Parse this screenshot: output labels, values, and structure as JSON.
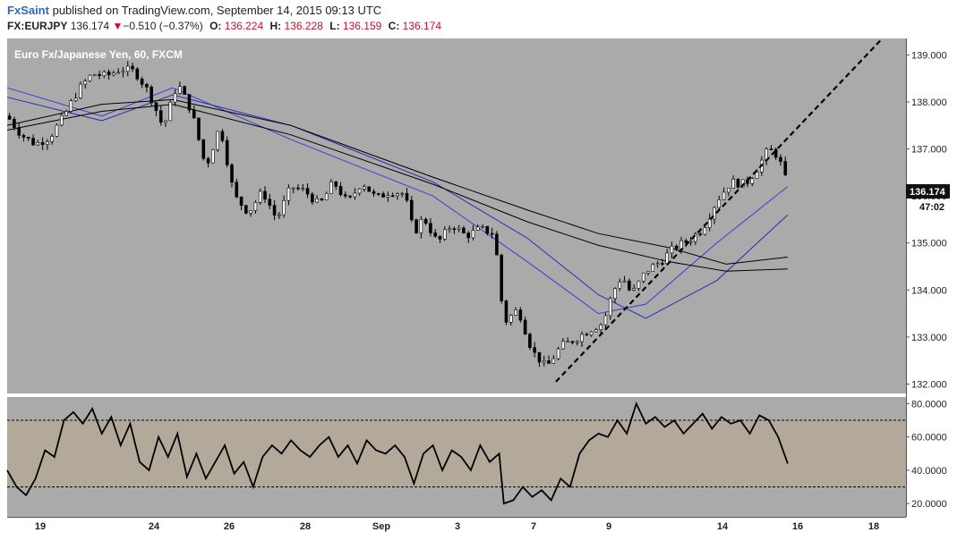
{
  "header": {
    "author": "FxSaint",
    "published_text": "published on TradingView.com, September 14, 2015 09:13 UTC",
    "symbol": "FX:EURJPY",
    "last": "136.174",
    "change_arrow": "▼",
    "change": "−0.510 (−0.37%)",
    "open_label": "O:",
    "open": "136.224",
    "high_label": "H:",
    "high": "136.228",
    "low_label": "L:",
    "low": "136.159",
    "close_label": "C:",
    "close": "136.174"
  },
  "chart_data": {
    "type": "candlestick",
    "title": "Euro Fx/Japanese Yen, 60, FXCM",
    "timeframe": "60",
    "ylim": [
      131.8,
      139.35
    ],
    "y_ticks": [
      "139.000",
      "138.000",
      "137.000",
      "136.000",
      "135.000",
      "134.000",
      "133.000",
      "132.000"
    ],
    "last_price_label": "136.174",
    "countdown_label": "47:02",
    "x_ticks": [
      "19",
      "24",
      "26",
      "28",
      "Sep",
      "3",
      "7",
      "9",
      "14",
      "16",
      "18"
    ],
    "price_path": [
      [
        0,
        137.7
      ],
      [
        3,
        137.3
      ],
      [
        6,
        137.1
      ],
      [
        9,
        137.25
      ],
      [
        12,
        137.7
      ],
      [
        15,
        138.25
      ],
      [
        18,
        138.6
      ],
      [
        21,
        138.55
      ],
      [
        24,
        138.7
      ],
      [
        27,
        138.65
      ],
      [
        30,
        138.2
      ],
      [
        33,
        137.45
      ],
      [
        36,
        138.4
      ],
      [
        39,
        137.8
      ],
      [
        42,
        136.6
      ],
      [
        45,
        137.5
      ],
      [
        48,
        136.0
      ],
      [
        51,
        135.65
      ],
      [
        54,
        136.1
      ],
      [
        57,
        135.5
      ],
      [
        60,
        136.2
      ],
      [
        63,
        136.1
      ],
      [
        66,
        135.8
      ],
      [
        69,
        136.3
      ],
      [
        72,
        135.85
      ],
      [
        75,
        136.3
      ],
      [
        78,
        135.95
      ],
      [
        81,
        136.1
      ],
      [
        84,
        136.05
      ],
      [
        86,
        135.2
      ],
      [
        88,
        135.55
      ],
      [
        91,
        135.0
      ],
      [
        94,
        135.4
      ],
      [
        97,
        135.15
      ],
      [
        100,
        135.3
      ],
      [
        103,
        135.2
      ],
      [
        105,
        133.3
      ],
      [
        108,
        133.6
      ],
      [
        111,
        132.7
      ],
      [
        114,
        132.35
      ],
      [
        117,
        132.8
      ],
      [
        120,
        132.95
      ],
      [
        123,
        133.15
      ],
      [
        126,
        133.3
      ],
      [
        128,
        133.95
      ],
      [
        130,
        134.3
      ],
      [
        132,
        133.9
      ],
      [
        135,
        134.4
      ],
      [
        138,
        134.6
      ],
      [
        141,
        134.9
      ],
      [
        144,
        135.05
      ],
      [
        147,
        135.3
      ],
      [
        150,
        135.9
      ],
      [
        153,
        136.3
      ],
      [
        156,
        136.25
      ],
      [
        158,
        136.5
      ],
      [
        161,
        137.0
      ],
      [
        163,
        136.85
      ],
      [
        165,
        136.2
      ]
    ],
    "series": [
      {
        "name": "",
        "color": "#3b3bd6",
        "values": [
          [
            0,
            138.3
          ],
          [
            20,
            137.7
          ],
          [
            35,
            138.3
          ],
          [
            60,
            137.2
          ],
          [
            90,
            136.0
          ],
          [
            110,
            134.6
          ],
          [
            125,
            133.5
          ],
          [
            135,
            133.7
          ],
          [
            150,
            135.0
          ],
          [
            165,
            136.2
          ]
        ]
      },
      {
        "name": "",
        "color": "#2a2ab8",
        "values": [
          [
            0,
            138.1
          ],
          [
            20,
            137.6
          ],
          [
            35,
            138.15
          ],
          [
            60,
            137.5
          ],
          [
            90,
            136.3
          ],
          [
            110,
            135.1
          ],
          [
            125,
            133.9
          ],
          [
            135,
            133.4
          ],
          [
            150,
            134.2
          ],
          [
            165,
            135.6
          ]
        ]
      },
      {
        "name": "",
        "color": "#000000",
        "values": [
          [
            0,
            137.5
          ],
          [
            20,
            137.95
          ],
          [
            35,
            138.05
          ],
          [
            60,
            137.5
          ],
          [
            90,
            136.4
          ],
          [
            110,
            135.7
          ],
          [
            125,
            135.2
          ],
          [
            140,
            134.9
          ],
          [
            152,
            134.55
          ],
          [
            165,
            134.7
          ]
        ]
      },
      {
        "name": "",
        "color": "#000000",
        "values": [
          [
            0,
            137.4
          ],
          [
            20,
            137.8
          ],
          [
            35,
            137.95
          ],
          [
            60,
            137.3
          ],
          [
            90,
            136.25
          ],
          [
            110,
            135.45
          ],
          [
            125,
            134.95
          ],
          [
            140,
            134.6
          ],
          [
            152,
            134.4
          ],
          [
            165,
            134.45
          ]
        ]
      }
    ],
    "trendline": [
      [
        116,
        132.05
      ],
      [
        185,
        139.35
      ]
    ],
    "indicator": {
      "type": "rsi",
      "ylim": [
        12,
        84
      ],
      "y_ticks": [
        "80.0000",
        "60.0000",
        "40.0000",
        "20.0000"
      ],
      "upper_band": 70,
      "lower_band": 30,
      "values": [
        [
          0,
          40
        ],
        [
          2,
          30
        ],
        [
          4,
          25
        ],
        [
          6,
          35
        ],
        [
          8,
          52
        ],
        [
          10,
          48
        ],
        [
          12,
          70
        ],
        [
          14,
          75
        ],
        [
          16,
          68
        ],
        [
          18,
          77
        ],
        [
          20,
          62
        ],
        [
          22,
          72
        ],
        [
          24,
          55
        ],
        [
          26,
          68
        ],
        [
          28,
          45
        ],
        [
          30,
          40
        ],
        [
          32,
          60
        ],
        [
          34,
          48
        ],
        [
          36,
          62
        ],
        [
          38,
          36
        ],
        [
          40,
          50
        ],
        [
          42,
          35
        ],
        [
          44,
          45
        ],
        [
          46,
          55
        ],
        [
          48,
          38
        ],
        [
          50,
          45
        ],
        [
          52,
          30
        ],
        [
          54,
          48
        ],
        [
          56,
          55
        ],
        [
          58,
          50
        ],
        [
          60,
          58
        ],
        [
          62,
          52
        ],
        [
          64,
          48
        ],
        [
          66,
          55
        ],
        [
          68,
          60
        ],
        [
          70,
          48
        ],
        [
          72,
          55
        ],
        [
          74,
          44
        ],
        [
          76,
          58
        ],
        [
          78,
          52
        ],
        [
          80,
          50
        ],
        [
          82,
          55
        ],
        [
          84,
          48
        ],
        [
          86,
          32
        ],
        [
          88,
          50
        ],
        [
          90,
          55
        ],
        [
          92,
          40
        ],
        [
          94,
          52
        ],
        [
          96,
          48
        ],
        [
          98,
          40
        ],
        [
          100,
          55
        ],
        [
          102,
          45
        ],
        [
          104,
          50
        ],
        [
          105,
          20
        ],
        [
          107,
          22
        ],
        [
          109,
          30
        ],
        [
          111,
          24
        ],
        [
          113,
          28
        ],
        [
          115,
          22
        ],
        [
          117,
          35
        ],
        [
          119,
          30
        ],
        [
          121,
          50
        ],
        [
          123,
          58
        ],
        [
          125,
          62
        ],
        [
          127,
          60
        ],
        [
          129,
          70
        ],
        [
          131,
          62
        ],
        [
          133,
          80
        ],
        [
          135,
          68
        ],
        [
          137,
          72
        ],
        [
          139,
          66
        ],
        [
          141,
          70
        ],
        [
          143,
          62
        ],
        [
          145,
          68
        ],
        [
          147,
          74
        ],
        [
          149,
          65
        ],
        [
          151,
          72
        ],
        [
          153,
          68
        ],
        [
          155,
          70
        ],
        [
          157,
          62
        ],
        [
          159,
          73
        ],
        [
          161,
          70
        ],
        [
          163,
          60
        ],
        [
          165,
          44
        ]
      ]
    }
  }
}
